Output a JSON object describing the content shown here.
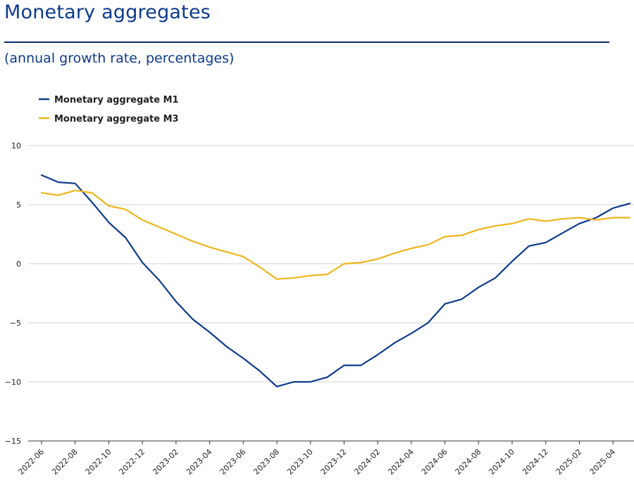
{
  "header": {
    "title": "Monetary aggregates",
    "subtitle": "(annual growth rate, percentages)"
  },
  "chart_data": {
    "type": "line",
    "title": "Monetary aggregates",
    "subtitle": "(annual growth rate, percentages)",
    "xlabel": "",
    "ylabel": "",
    "ylim": [
      -15,
      10
    ],
    "yticks": [
      10,
      5,
      0,
      -5,
      -10,
      -15
    ],
    "grid": true,
    "legend_position": "top-left",
    "x": [
      "2022-06",
      "2022-07",
      "2022-08",
      "2022-09",
      "2022-10",
      "2022-11",
      "2022-12",
      "2023-01",
      "2023-02",
      "2023-03",
      "2023-04",
      "2023-05",
      "2023-06",
      "2023-07",
      "2023-08",
      "2023-09",
      "2023-10",
      "2023-11",
      "2023-12",
      "2024-01",
      "2024-02",
      "2024-03",
      "2024-04",
      "2024-05",
      "2024-06",
      "2024-07",
      "2024-08",
      "2024-09",
      "2024-10",
      "2024-11",
      "2024-12",
      "2025-01",
      "2025-02",
      "2025-03",
      "2025-04",
      "2025-05"
    ],
    "xtick_labels": [
      "2022-06",
      "2022-08",
      "2022-10",
      "2022-12",
      "2023-02",
      "2023-04",
      "2023-06",
      "2023-08",
      "2023-10",
      "2023-12",
      "2024-02",
      "2024-04",
      "2024-06",
      "2024-08",
      "2024-10",
      "2024-12",
      "2025-02",
      "2025-04"
    ],
    "series": [
      {
        "name": "Monetary aggregate M1",
        "color": "#0d3a8c",
        "values": [
          7.5,
          6.9,
          6.8,
          5.2,
          3.5,
          2.2,
          0.1,
          -1.4,
          -3.2,
          -4.7,
          -5.8,
          -7.0,
          -8.0,
          -9.1,
          -10.4,
          -10.0,
          -10.0,
          -9.6,
          -8.6,
          -8.6,
          -7.7,
          -6.7,
          -5.9,
          -5.0,
          -3.4,
          -3.0,
          -2.0,
          -1.2,
          0.2,
          1.5,
          1.8,
          2.6,
          3.4,
          3.9,
          4.7,
          5.1
        ]
      },
      {
        "name": "Monetary aggregate M3",
        "color": "#f0b51b",
        "values": [
          6.0,
          5.8,
          6.2,
          6.0,
          4.9,
          4.6,
          3.7,
          3.1,
          2.5,
          1.9,
          1.4,
          1.0,
          0.6,
          -0.3,
          -1.3,
          -1.2,
          -1.0,
          -0.9,
          0.0,
          0.1,
          0.4,
          0.9,
          1.3,
          1.6,
          2.3,
          2.4,
          2.9,
          3.2,
          3.4,
          3.8,
          3.6,
          3.8,
          3.9,
          3.7,
          3.9,
          3.9
        ]
      }
    ]
  }
}
